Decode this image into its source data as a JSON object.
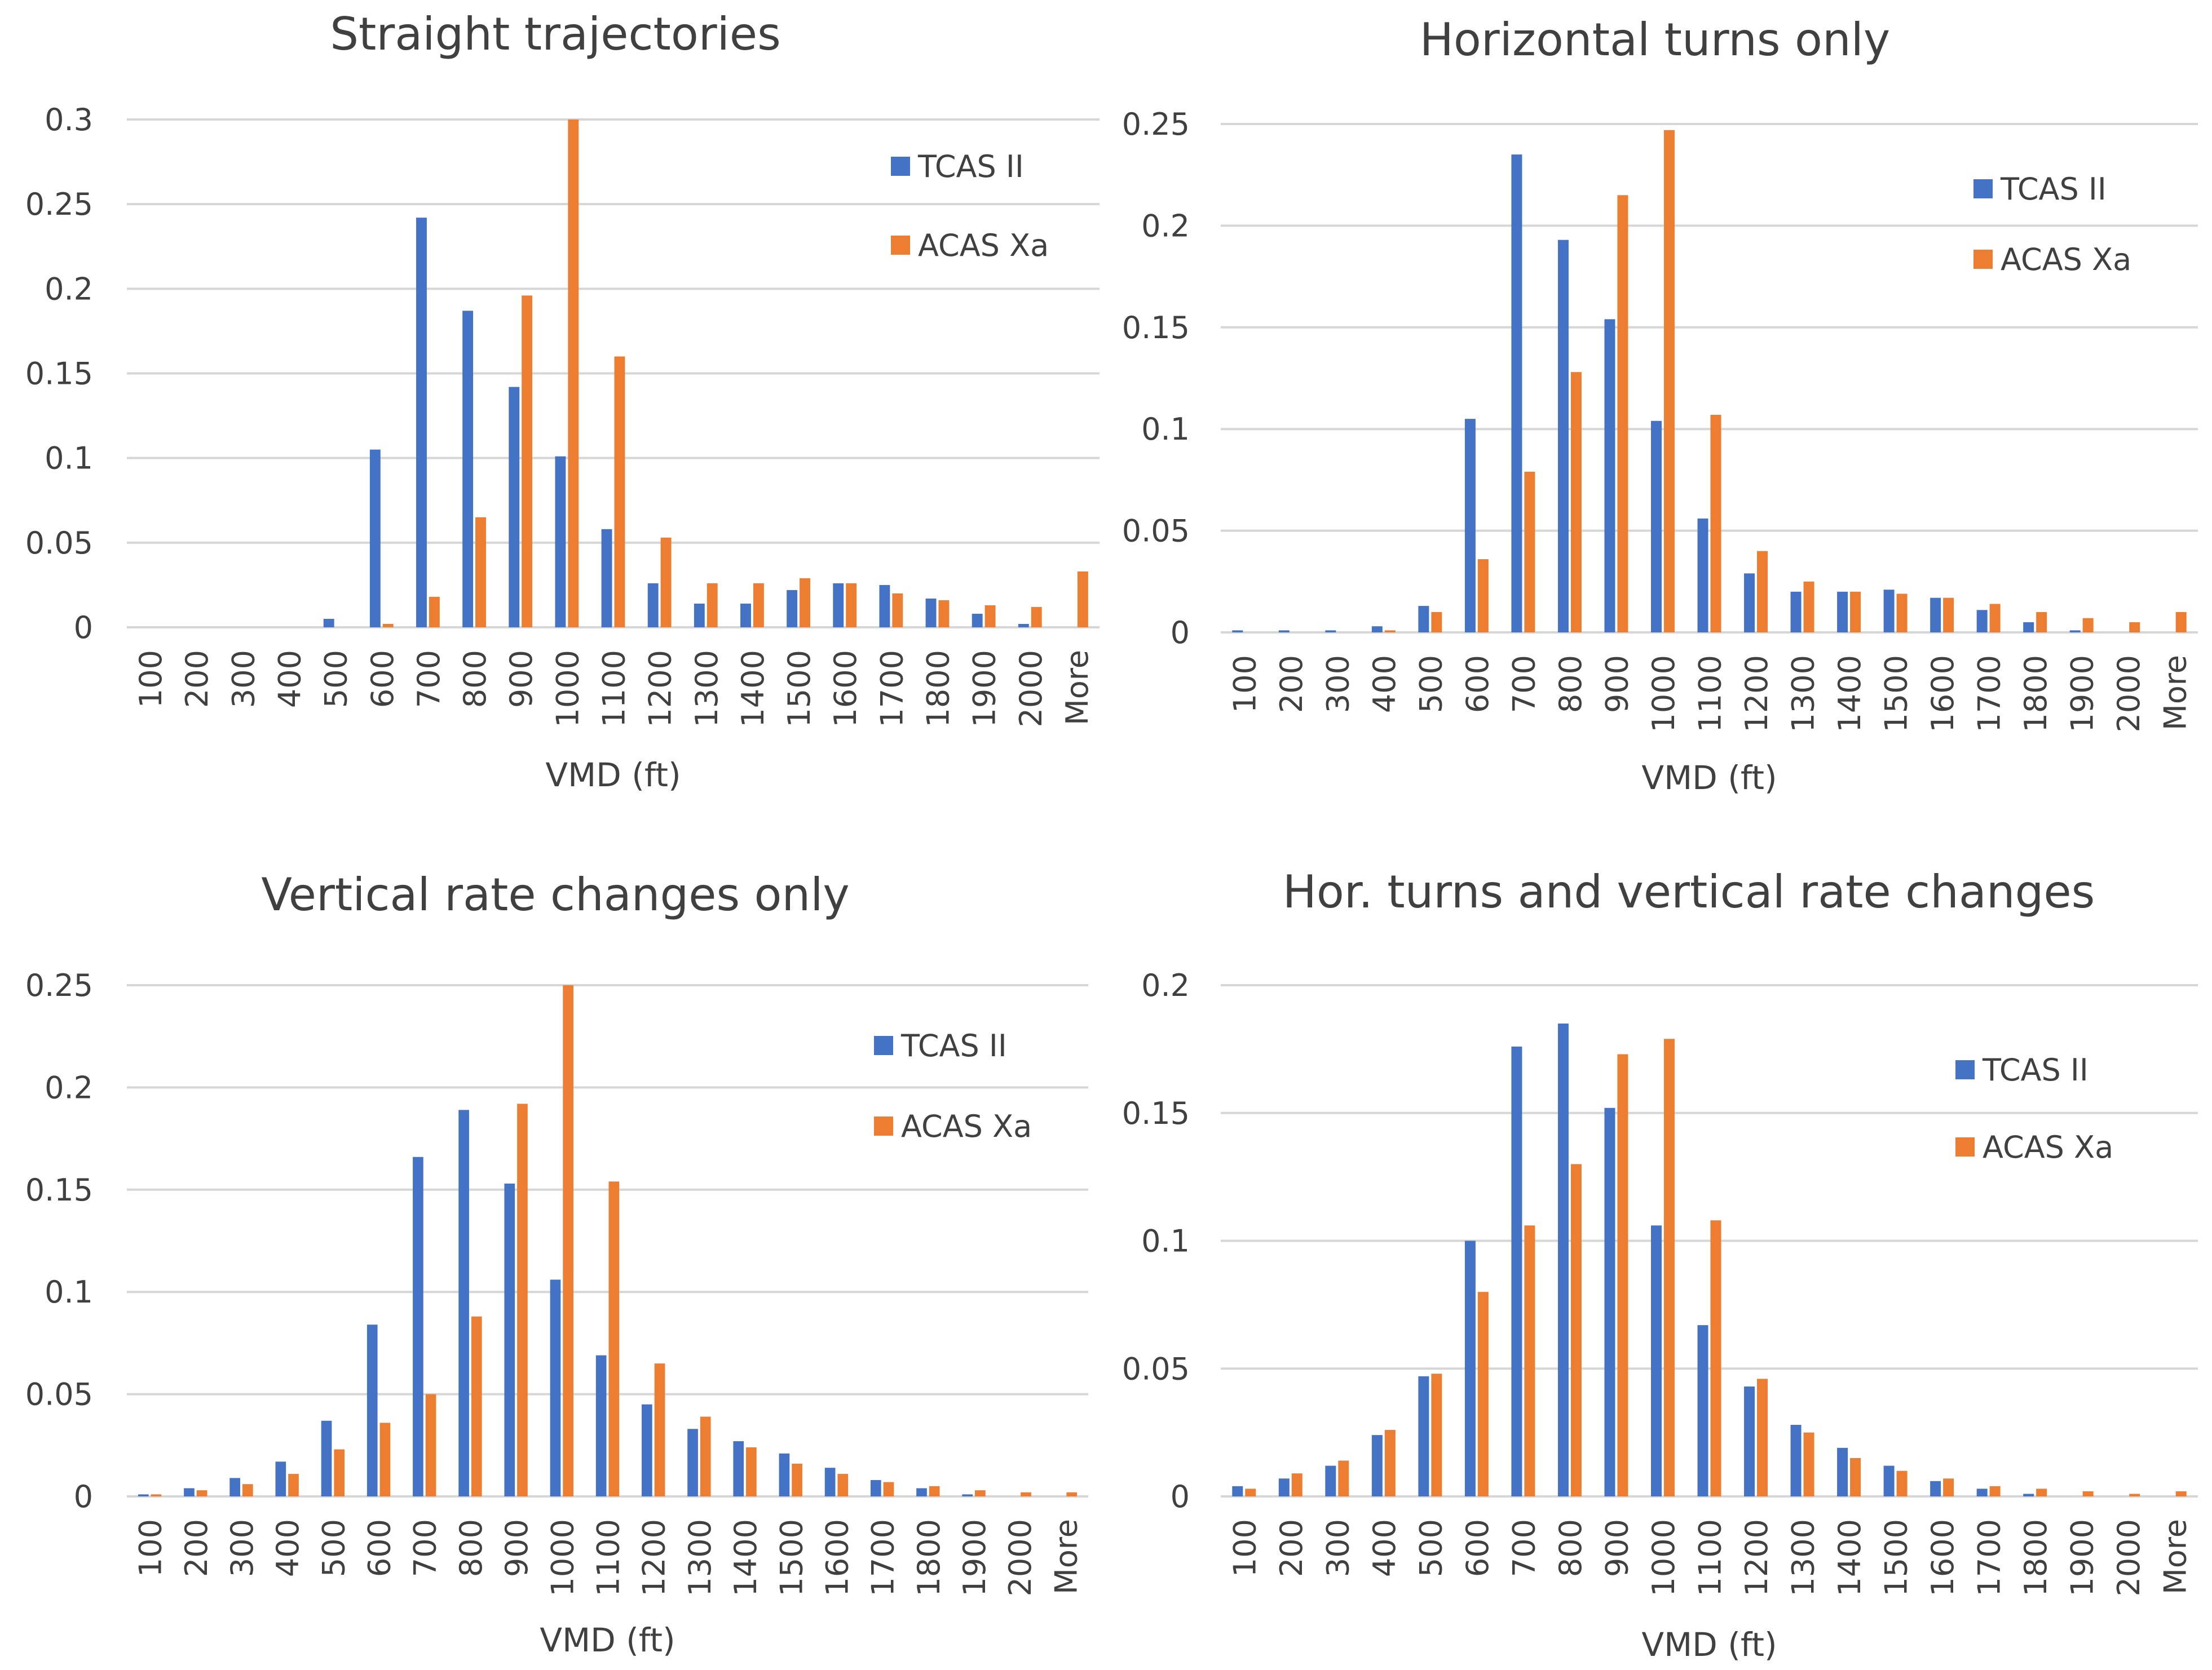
{
  "colors": {
    "tcas": "#4472C4",
    "acas": "#ED7D31",
    "grid": "#D9D9D9",
    "text": "#404040"
  },
  "chart_data": [
    {
      "type": "bar",
      "title": "Straight trajectories",
      "xlabel": "VMD (ft)",
      "ylabel": "",
      "ylim": [
        0,
        0.3
      ],
      "yticks": [
        "0",
        "0.05",
        "0.1",
        "0.15",
        "0.2",
        "0.25",
        "0.3"
      ],
      "legend": "top-right",
      "categories": [
        "100",
        "200",
        "300",
        "400",
        "500",
        "600",
        "700",
        "800",
        "900",
        "1000",
        "1100",
        "1200",
        "1300",
        "1400",
        "1500",
        "1600",
        "1700",
        "1800",
        "1900",
        "2000",
        "More"
      ],
      "series": [
        {
          "name": "TCAS II",
          "values": [
            0,
            0,
            0,
            0,
            0.005,
            0.105,
            0.242,
            0.187,
            0.142,
            0.101,
            0.058,
            0.026,
            0.014,
            0.014,
            0.022,
            0.026,
            0.025,
            0.017,
            0.008,
            0.002,
            0
          ]
        },
        {
          "name": "ACAS Xa",
          "values": [
            0,
            0,
            0,
            0,
            0,
            0.002,
            0.018,
            0.065,
            0.196,
            0.3,
            0.16,
            0.053,
            0.026,
            0.026,
            0.029,
            0.026,
            0.02,
            0.016,
            0.013,
            0.012,
            0.033
          ]
        }
      ]
    },
    {
      "type": "bar",
      "title": "Horizontal turns only",
      "xlabel": "VMD (ft)",
      "ylabel": "",
      "ylim": [
        0,
        0.25
      ],
      "yticks": [
        "0",
        "0.05",
        "0.1",
        "0.15",
        "0.2",
        "0.25"
      ],
      "legend": "top-right",
      "categories": [
        "100",
        "200",
        "300",
        "400",
        "500",
        "600",
        "700",
        "800",
        "900",
        "1000",
        "1100",
        "1200",
        "1300",
        "1400",
        "1500",
        "1600",
        "1700",
        "1800",
        "1900",
        "2000",
        "More"
      ],
      "series": [
        {
          "name": "TCAS II",
          "values": [
            0.001,
            0.001,
            0.001,
            0.003,
            0.013,
            0.105,
            0.235,
            0.193,
            0.154,
            0.104,
            0.056,
            0.029,
            0.02,
            0.02,
            0.021,
            0.017,
            0.011,
            0.005,
            0.001,
            0,
            0
          ]
        },
        {
          "name": "ACAS Xa",
          "values": [
            0,
            0,
            0,
            0.001,
            0.01,
            0.036,
            0.079,
            0.128,
            0.215,
            0.247,
            0.107,
            0.04,
            0.025,
            0.02,
            0.019,
            0.017,
            0.014,
            0.01,
            0.007,
            0.005,
            0.01
          ]
        }
      ]
    },
    {
      "type": "bar",
      "title": "Vertical rate changes only",
      "xlabel": "VMD (ft)",
      "ylabel": "",
      "ylim": [
        0,
        0.25
      ],
      "yticks": [
        "0",
        "0.05",
        "0.1",
        "0.15",
        "0.2",
        "0.25"
      ],
      "legend": "top-right",
      "categories": [
        "100",
        "200",
        "300",
        "400",
        "500",
        "600",
        "700",
        "800",
        "900",
        "1000",
        "1100",
        "1200",
        "1300",
        "1400",
        "1500",
        "1600",
        "1700",
        "1800",
        "1900",
        "2000",
        "More"
      ],
      "series": [
        {
          "name": "TCAS II",
          "values": [
            0.001,
            0.004,
            0.009,
            0.017,
            0.037,
            0.084,
            0.166,
            0.189,
            0.153,
            0.106,
            0.069,
            0.045,
            0.033,
            0.027,
            0.021,
            0.014,
            0.008,
            0.004,
            0.001,
            0,
            0
          ]
        },
        {
          "name": "ACAS Xa",
          "values": [
            0.001,
            0.003,
            0.006,
            0.011,
            0.023,
            0.036,
            0.05,
            0.088,
            0.192,
            0.25,
            0.154,
            0.065,
            0.039,
            0.024,
            0.016,
            0.011,
            0.007,
            0.005,
            0.003,
            0.002,
            0.002
          ]
        }
      ]
    },
    {
      "type": "bar",
      "title": "Hor. turns and vertical rate changes",
      "xlabel": "VMD (ft)",
      "ylabel": "",
      "ylim": [
        0,
        0.2
      ],
      "yticks": [
        "0",
        "0.05",
        "0.1",
        "0.15",
        "0.2"
      ],
      "legend": "top-right",
      "categories": [
        "100",
        "200",
        "300",
        "400",
        "500",
        "600",
        "700",
        "800",
        "900",
        "1000",
        "1100",
        "1200",
        "1300",
        "1400",
        "1500",
        "1600",
        "1700",
        "1800",
        "1900",
        "2000",
        "More"
      ],
      "series": [
        {
          "name": "TCAS II",
          "values": [
            0.004,
            0.007,
            0.012,
            0.024,
            0.047,
            0.1,
            0.176,
            0.185,
            0.152,
            0.106,
            0.067,
            0.043,
            0.028,
            0.019,
            0.012,
            0.006,
            0.003,
            0.001,
            0,
            0,
            0
          ]
        },
        {
          "name": "ACAS Xa",
          "values": [
            0.003,
            0.009,
            0.014,
            0.026,
            0.048,
            0.08,
            0.106,
            0.13,
            0.173,
            0.179,
            0.108,
            0.046,
            0.025,
            0.015,
            0.01,
            0.007,
            0.004,
            0.003,
            0.002,
            0.001,
            0.002
          ]
        }
      ]
    }
  ]
}
